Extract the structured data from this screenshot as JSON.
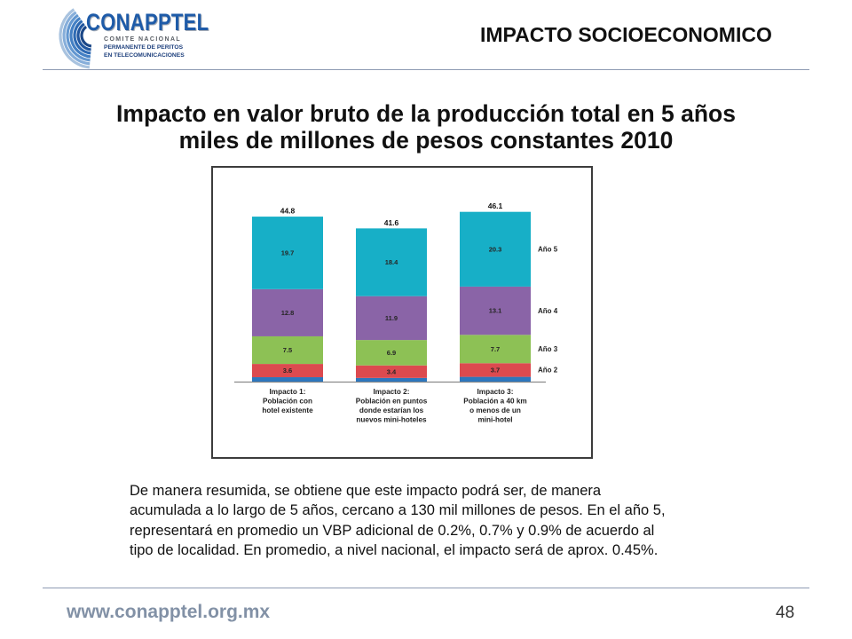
{
  "logo": {
    "name": "CONAPPTEL",
    "lines": [
      "COMITE NACIONAL",
      "PERMANENTE DE PERITOS",
      "EN TELECOMUNICACIONES"
    ],
    "color": "#1E5BA8"
  },
  "header": {
    "section_title": "IMPACTO SOCIOECONOMICO"
  },
  "slide": {
    "title_lines": [
      "Impacto en valor bruto de la producción total en 5 años",
      "miles de millones de pesos constantes 2010"
    ],
    "summary_lines": [
      "De manera resumida, se obtiene que este impacto podrá ser, de manera",
      "acumulada a lo largo de 5 años, cercano a 130 mil millones de pesos. En el año 5,",
      "representará en promedio un VBP adicional de 0.2%, 0.7% y 0.9% de acuerdo al",
      "tipo de localidad. En promedio, a nivel nacional, el impacto será de aprox. 0.45%."
    ]
  },
  "footer": {
    "website": "www.conapptel.org.mx",
    "page_number": "48"
  },
  "chart_data": {
    "type": "bar",
    "stacked": true,
    "categories": [
      [
        "Impacto 1:",
        "Población con",
        "hotel existente"
      ],
      [
        "Impacto 2:",
        "Población en puntos",
        "donde estarían los",
        "nuevos mini-hoteles"
      ],
      [
        "Impacto 3:",
        "Población a 40 km",
        "o menos de un",
        "mini-hotel"
      ]
    ],
    "series": [
      {
        "color": "#2D76BD",
        "values": [
          1.2,
          1.0,
          1.3
        ],
        "data_labels": false
      },
      {
        "name": "Año 2",
        "color": "#DC4A4F",
        "values": [
          3.6,
          3.4,
          3.7
        ],
        "data_labels": true
      },
      {
        "name": "Año 3",
        "color": "#8DC155",
        "values": [
          7.5,
          6.9,
          7.7
        ],
        "data_labels": true
      },
      {
        "name": "Año 4",
        "color": "#8A64A7",
        "values": [
          12.8,
          11.9,
          13.1
        ],
        "data_labels": true
      },
      {
        "name": "Año 5",
        "color": "#17AFC7",
        "values": [
          19.7,
          18.4,
          20.3
        ],
        "data_labels": true
      }
    ],
    "totals": [
      44.8,
      41.6,
      46.1
    ],
    "legend": "right",
    "grid": false
  }
}
